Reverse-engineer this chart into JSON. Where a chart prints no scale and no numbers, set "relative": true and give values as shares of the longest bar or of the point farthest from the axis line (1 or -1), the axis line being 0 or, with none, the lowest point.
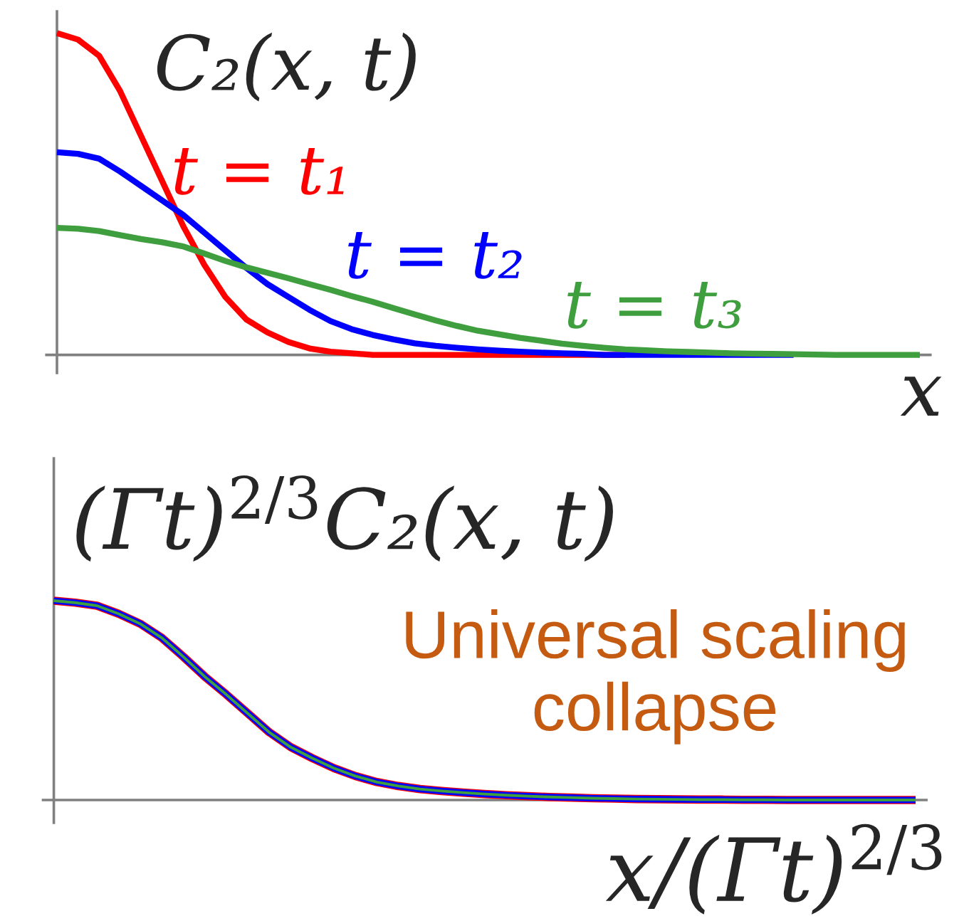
{
  "chart_data": [
    {
      "type": "line",
      "relative": true,
      "ylabel": "C₂(x, t)",
      "xlabel": "x",
      "categories": [
        null,
        null,
        null,
        null,
        null,
        null,
        null,
        null,
        null,
        null,
        null,
        null,
        null,
        null,
        null,
        null,
        null,
        null,
        null,
        null,
        null,
        null,
        null,
        null,
        null,
        null,
        null,
        null,
        null,
        null,
        null,
        null,
        null,
        null,
        null,
        null,
        null,
        null,
        null,
        null,
        null,
        null
      ],
      "series": [
        {
          "name": "t = t₁",
          "color": "#ff0000",
          "values": [
            1.0,
            0.98,
            0.93,
            0.82,
            0.68,
            0.54,
            0.4,
            0.28,
            0.18,
            0.11,
            0.07,
            0.04,
            0.02,
            0.01,
            0.005,
            0,
            0,
            0,
            0,
            0,
            0,
            0,
            0,
            0,
            0,
            0,
            0,
            0,
            null,
            null,
            null,
            null,
            null,
            null,
            null,
            null,
            null,
            null,
            null,
            null,
            null,
            null
          ]
        },
        {
          "name": "t = t₂",
          "color": "#0000ff",
          "values": [
            0.63,
            0.625,
            0.61,
            0.57,
            0.525,
            0.48,
            0.435,
            0.38,
            0.325,
            0.27,
            0.22,
            0.18,
            0.14,
            0.105,
            0.08,
            0.062,
            0.048,
            0.036,
            0.028,
            0.022,
            0.017,
            0.013,
            0.01,
            0.007,
            0.005,
            0.003,
            0,
            0,
            0,
            0,
            0,
            0,
            0,
            0,
            0,
            0,
            null,
            null,
            null,
            null,
            null,
            null
          ]
        },
        {
          "name": "t = t₃",
          "color": "#3f9f3f",
          "values": [
            0.395,
            0.392,
            0.385,
            0.372,
            0.36,
            0.35,
            0.337,
            0.315,
            0.292,
            0.272,
            0.255,
            0.238,
            0.22,
            0.202,
            0.183,
            0.165,
            0.145,
            0.126,
            0.107,
            0.09,
            0.075,
            0.064,
            0.053,
            0.044,
            0.035,
            0.028,
            0.022,
            0.017,
            0.014,
            0.011,
            0.009,
            0.007,
            0.005,
            0.004,
            0.003,
            0.002,
            0.001,
            0,
            0,
            0,
            0,
            0
          ]
        }
      ]
    },
    {
      "type": "line",
      "relative": true,
      "ylabel": "(Γt)$^{2/3}$C₂(x, t)",
      "xlabel": "x/(Γt)$^{2/3}$",
      "annotations": [
        "Universal scaling collapse"
      ],
      "categories": [
        null,
        null,
        null,
        null,
        null,
        null,
        null,
        null,
        null,
        null,
        null,
        null,
        null,
        null,
        null,
        null,
        null,
        null,
        null,
        null,
        null,
        null,
        null,
        null,
        null,
        null,
        null,
        null,
        null,
        null,
        null,
        null,
        null,
        null,
        null,
        null,
        null,
        null,
        null,
        null,
        null
      ],
      "series": [
        {
          "color": "#ff0000",
          "values": [
            1.0,
            0.99,
            0.975,
            0.935,
            0.885,
            0.815,
            0.72,
            0.62,
            0.53,
            0.435,
            0.34,
            0.265,
            0.21,
            0.16,
            0.12,
            0.09,
            0.07,
            0.055,
            0.045,
            0.037,
            0.03,
            0.024,
            0.019,
            0.015,
            0.012,
            0.009,
            0.007,
            0.005,
            0.004,
            0.003,
            0.002,
            0.002,
            0.001,
            0.001,
            0,
            0,
            0,
            0,
            0,
            0,
            0
          ]
        },
        {
          "color": "#0000ff",
          "values": [
            1.0,
            0.99,
            0.975,
            0.935,
            0.885,
            0.815,
            0.72,
            0.62,
            0.53,
            0.435,
            0.34,
            0.265,
            0.21,
            0.16,
            0.12,
            0.09,
            0.07,
            0.055,
            0.045,
            0.037,
            0.03,
            0.024,
            0.019,
            0.015,
            0.012,
            0.009,
            0.007,
            0.005,
            0.004,
            0.003,
            0.002,
            0.002,
            0.001,
            0.001,
            0,
            0,
            0,
            0,
            0,
            0,
            0
          ]
        },
        {
          "color": "#3f9f3f",
          "values": [
            1.0,
            0.99,
            0.975,
            0.935,
            0.885,
            0.815,
            0.72,
            0.62,
            0.53,
            0.435,
            0.34,
            0.265,
            0.21,
            0.16,
            0.12,
            0.09,
            0.07,
            0.055,
            0.045,
            0.037,
            0.03,
            0.024,
            0.019,
            0.015,
            0.012,
            0.009,
            0.007,
            0.005,
            0.004,
            0.003,
            0.002,
            0.002,
            0.001,
            0.001,
            0,
            0,
            0,
            0,
            0,
            0,
            0
          ]
        }
      ]
    }
  ]
}
